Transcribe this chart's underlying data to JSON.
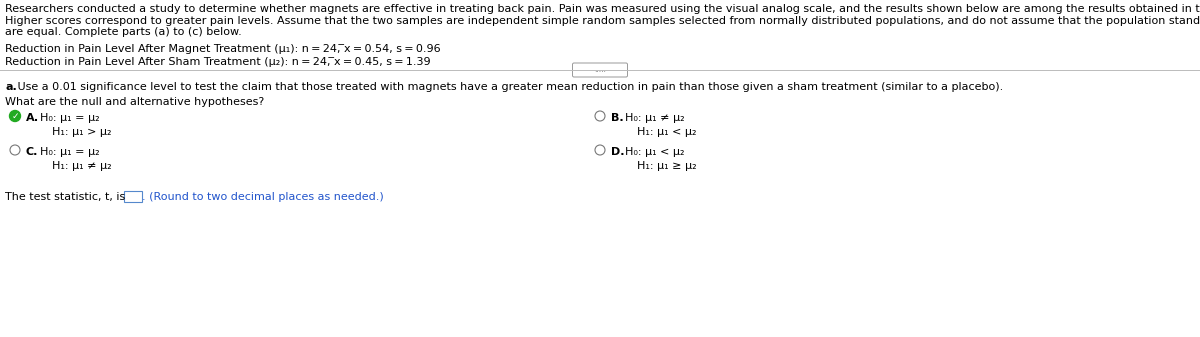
{
  "bg_color": "#ffffff",
  "intro_line1": "Researchers conducted a study to determine whether magnets are effective in treating back pain. Pain was measured using the visual analog scale, and the results shown below are among the results obtained in the study.",
  "intro_line2": "Higher scores correspond to greater pain levels. Assume that the two samples are independent simple random samples selected from normally distributed populations, and do not assume that the population standard deviations",
  "intro_line3": "are equal. Complete parts (a) to (c) below.",
  "magnet_line": "Reduction in Pain Level After Magnet Treatment (μ₁): n = 24, ̅x = 0.54, s = 0.96",
  "sham_line": "Reduction in Pain Level After Sham Treatment (μ₂): n = 24, ̅x = 0.45, s = 1.39",
  "part_a_bold": "a.",
  "part_a_rest": " Use a 0.01 significance level to test the claim that those treated with magnets have a greater mean reduction in pain than those given a sham treatment (similar to a placebo).",
  "hypotheses_question": "What are the null and alternative hypotheses?",
  "option_A_H0": "H₀: μ₁ = μ₂",
  "option_A_H1": "H₁: μ₁ > μ₂",
  "option_B_H0": "H₀: μ₁ ≠ μ₂",
  "option_B_H1": "H₁: μ₁ < μ₂",
  "option_C_H0": "H₀: μ₁ = μ₂",
  "option_C_H1": "H₁: μ₁ ≠ μ₂",
  "option_D_H0": "H₀: μ₁ < μ₂",
  "option_D_H1": "H₁: μ₁ ≥ μ₂",
  "test_stat_black": "The test statistic, t, is",
  "test_stat_blue": " (Round to two decimal places as needed.)",
  "dots_text": ".....",
  "main_fontsize": 8.0,
  "text_color": "#000000",
  "blue_color": "#2255cc",
  "green_color": "#22aa22",
  "line_color": "#bbbbbb",
  "radio_color": "#777777",
  "box_edge_color": "#5588cc"
}
